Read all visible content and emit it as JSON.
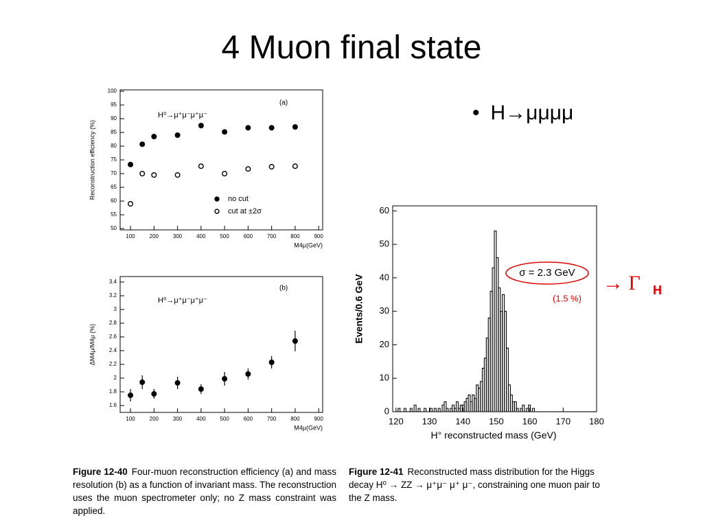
{
  "slide": {
    "title": "4 Muon final state",
    "bullet": "H→μμμμ",
    "arrow": "→ Γ",
    "arrow_sub": "H",
    "captions": [
      {
        "label": "Figure 12-40",
        "text": "Four-muon reconstruction efficiency (a) and mass resolution (b) as a function of invariant mass. The reconstruction uses the muon spectrometer only; no Z mass constraint was applied."
      },
      {
        "label": "Figure 12-41",
        "text": "Reconstructed mass distribution for the Higgs decay H⁰ → ZZ → μ⁺μ⁻ μ⁺ μ⁻, constraining one muon pair to the Z mass."
      }
    ]
  },
  "chart_data": [
    {
      "type": "scatter",
      "panel_label": "(a)",
      "annotation": "H⁰→μ⁺μ⁻μ⁺μ⁻",
      "x_label": "M4μ(GeV)",
      "y_label": "Reconstruction efficiency (%)",
      "xlim": [
        56,
        917
      ],
      "ylim": [
        49.5,
        100.5
      ],
      "xticks": [
        100,
        200,
        300,
        400,
        500,
        600,
        700,
        800,
        900
      ],
      "yticks": [
        50,
        55,
        60,
        65,
        70,
        75,
        80,
        85,
        90,
        95,
        100
      ],
      "x": [
        100,
        150,
        200,
        300,
        400,
        500,
        600,
        700,
        800
      ],
      "series": [
        {
          "name": "no cut",
          "color": "#000000",
          "marker": "filled",
          "values": [
            73.3,
            80.7,
            83.5,
            84,
            87.5,
            85.2,
            86.7,
            86.7,
            87
          ],
          "errors": [
            0.9,
            0.9,
            0.8,
            0.8,
            0.8,
            0.8,
            0.7,
            0.7,
            0.7
          ]
        },
        {
          "name": "cut at ±2σ",
          "color": "#000000",
          "marker": "open",
          "values": [
            59,
            70,
            69.5,
            69.5,
            72.7,
            70,
            71.7,
            72.5,
            72.7
          ],
          "errors": [
            1,
            1,
            1,
            0.9,
            0.9,
            0.9,
            0.9,
            0.9,
            0.8
          ]
        }
      ]
    },
    {
      "type": "scatter",
      "panel_label": "(b)",
      "annotation": "H⁰→μ⁺μ⁻μ⁺μ⁻",
      "x_label": "M4μ(GeV)",
      "y_label": "ΔM4μ/M4μ (%)",
      "xlim": [
        56,
        917
      ],
      "ylim": [
        1.5,
        3.48
      ],
      "xticks": [
        100,
        200,
        300,
        400,
        500,
        600,
        700,
        800,
        900
      ],
      "yticks": [
        1.6,
        1.8,
        2,
        2.2,
        2.4,
        2.6,
        2.8,
        3,
        3.2,
        3.4
      ],
      "x": [
        100,
        150,
        200,
        300,
        400,
        500,
        600,
        700,
        800
      ],
      "values": [
        1.75,
        1.94,
        1.77,
        1.93,
        1.84,
        1.99,
        2.06,
        2.23,
        2.54
      ],
      "errors": [
        0.09,
        0.1,
        0.07,
        0.09,
        0.07,
        0.1,
        0.08,
        0.09,
        0.15
      ],
      "color": "#000000"
    },
    {
      "type": "histogram",
      "x_label": "H° reconstructed mass (GeV)",
      "y_label": "Events/0.6 GeV",
      "annotation": "σ = 2.3 GeV",
      "annotation2": "(1.5 %)",
      "xlim": [
        119,
        180
      ],
      "ylim": [
        0,
        61.5
      ],
      "xticks": [
        120,
        130,
        140,
        150,
        160,
        170,
        180
      ],
      "yticks": [
        0,
        10,
        20,
        30,
        40,
        50,
        60
      ],
      "bins": [
        120,
        120.6,
        121.2,
        121.8,
        122.4,
        123,
        123.6,
        124.2,
        124.8,
        125.4,
        126,
        126.6,
        127.2,
        127.8,
        128.4,
        129,
        129.6,
        130.2,
        130.8,
        131.4,
        132,
        132.6,
        133.2,
        133.8,
        134.4,
        135,
        135.6,
        136.2,
        136.8,
        137.4,
        138,
        138.6,
        139.2,
        139.8,
        140.4,
        141,
        141.6,
        142.2,
        142.8,
        143.4,
        144,
        144.6,
        145.2,
        145.8,
        146.4,
        147,
        147.6,
        148.2,
        148.8,
        149.4,
        150,
        150.6,
        151.2,
        151.8,
        152.4,
        153,
        153.6,
        154.2,
        154.8,
        155.4,
        156,
        156.6,
        157.2,
        157.8,
        158.4,
        159,
        159.6,
        160.2,
        160.8,
        161.4,
        162,
        162.6,
        163.2,
        163.8,
        164.4,
        165,
        165.6,
        166.2,
        166.8,
        167.4,
        168,
        168.6,
        169.2,
        169.8,
        170.4,
        171,
        171.6,
        172.2,
        172.8,
        173.4,
        174,
        174.6,
        175.2,
        175.8,
        176.4,
        177,
        177.6,
        178.2,
        178.8,
        179.4,
        180
      ],
      "counts": [
        0,
        1,
        0,
        0,
        1,
        0,
        0,
        1,
        0,
        2,
        0,
        1,
        0,
        0,
        1,
        0,
        0,
        1,
        0,
        1,
        0,
        1,
        0,
        2,
        3,
        1,
        0,
        1,
        2,
        1,
        3,
        1,
        2,
        2,
        3,
        4,
        5,
        3,
        5,
        4,
        8,
        7,
        9,
        13,
        16,
        22,
        28,
        36,
        43,
        54,
        46,
        37,
        30,
        35,
        30,
        19,
        8,
        5,
        3,
        3,
        1,
        0,
        1,
        2,
        0,
        1,
        2,
        0,
        1,
        0,
        0,
        0,
        0,
        0,
        0,
        0,
        0,
        0,
        0,
        0,
        0,
        0,
        0,
        0,
        0,
        0,
        0,
        0,
        0,
        0,
        0,
        0,
        0,
        0,
        0,
        0,
        0,
        0,
        0,
        0
      ],
      "color": "#000000"
    }
  ]
}
